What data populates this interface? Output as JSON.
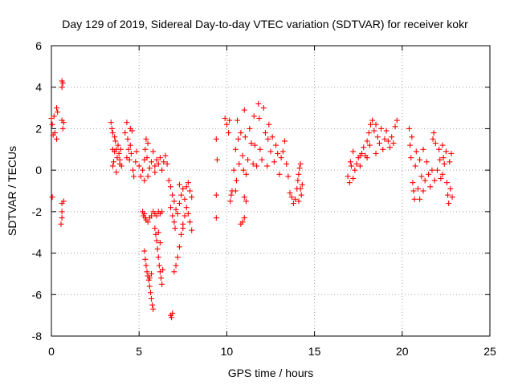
{
  "chart_data": {
    "type": "scatter",
    "title": "Day 129 of 2019, Sidereal Day-to-day VTEC variation (SDTVAR) for receiver kokr",
    "xlabel": "GPS time / hours",
    "ylabel": "SDTVAR / TECUs",
    "xlim": [
      0,
      25
    ],
    "ylim": [
      -8,
      6
    ],
    "xticks": [
      0,
      5,
      10,
      15,
      20,
      25
    ],
    "yticks": [
      -8,
      -6,
      -4,
      -2,
      0,
      2,
      4,
      6
    ],
    "grid": true,
    "marker": "+",
    "color": "#ff0000",
    "series": [
      {
        "name": "SDTVAR",
        "points": [
          [
            0.0,
            2.5
          ],
          [
            0.05,
            2.2
          ],
          [
            0.1,
            1.7
          ],
          [
            0.15,
            2.6
          ],
          [
            0.2,
            1.8
          ],
          [
            0.05,
            -1.3
          ],
          [
            0.3,
            3.0
          ],
          [
            0.35,
            2.8
          ],
          [
            0.3,
            1.5
          ],
          [
            0.6,
            4.3
          ],
          [
            0.6,
            4.0
          ],
          [
            0.65,
            4.2
          ],
          [
            0.7,
            2.3
          ],
          [
            0.6,
            2.4
          ],
          [
            0.65,
            2.0
          ],
          [
            0.6,
            -1.6
          ],
          [
            0.6,
            -2.0
          ],
          [
            0.55,
            -2.6
          ],
          [
            0.7,
            -1.5
          ],
          [
            0.6,
            -2.3
          ],
          [
            3.4,
            2.3
          ],
          [
            3.45,
            2.0
          ],
          [
            3.5,
            1.8
          ],
          [
            3.5,
            1.0
          ],
          [
            3.55,
            0.4
          ],
          [
            3.6,
            0.9
          ],
          [
            3.65,
            1.4
          ],
          [
            3.7,
            1.0
          ],
          [
            3.75,
            0.6
          ],
          [
            3.8,
            1.2
          ],
          [
            3.85,
            0.8
          ],
          [
            3.9,
            0.3
          ],
          [
            3.95,
            1.0
          ],
          [
            4.0,
            0.2
          ],
          [
            3.5,
            0.2
          ],
          [
            3.7,
            -0.1
          ],
          [
            3.9,
            0.5
          ],
          [
            3.6,
            1.6
          ],
          [
            4.2,
            1.8
          ],
          [
            4.3,
            2.3
          ],
          [
            4.35,
            1.5
          ],
          [
            4.4,
            1.0
          ],
          [
            4.45,
            0.5
          ],
          [
            4.5,
            1.2
          ],
          [
            4.55,
            0.8
          ],
          [
            4.6,
            1.9
          ],
          [
            4.65,
            0.0
          ],
          [
            4.7,
            -0.3
          ],
          [
            4.8,
            0.4
          ],
          [
            4.85,
            0.9
          ],
          [
            4.3,
            0.6
          ],
          [
            4.5,
            2.0
          ],
          [
            5.0,
            0.2
          ],
          [
            5.1,
            -0.3
          ],
          [
            5.2,
            0.0
          ],
          [
            5.3,
            0.5
          ],
          [
            5.35,
            1.0
          ],
          [
            5.4,
            1.5
          ],
          [
            5.5,
            1.3
          ],
          [
            5.45,
            0.6
          ],
          [
            5.6,
            0.1
          ],
          [
            5.7,
            0.4
          ],
          [
            5.8,
            0.9
          ],
          [
            5.9,
            0.2
          ],
          [
            6.0,
            0.5
          ],
          [
            6.1,
            0.3
          ],
          [
            6.2,
            0.6
          ],
          [
            6.3,
            0.0
          ],
          [
            6.4,
            0.4
          ],
          [
            6.5,
            0.7
          ],
          [
            6.6,
            0.3
          ],
          [
            5.3,
            -0.5
          ],
          [
            5.5,
            -0.3
          ],
          [
            5.9,
            -0.1
          ],
          [
            5.2,
            -2.0
          ],
          [
            5.25,
            -2.2
          ],
          [
            5.3,
            -2.1
          ],
          [
            5.35,
            -2.3
          ],
          [
            5.4,
            -2.4
          ],
          [
            5.5,
            -2.5
          ],
          [
            5.6,
            -2.3
          ],
          [
            5.7,
            -2.2
          ],
          [
            5.8,
            -2.0
          ],
          [
            5.9,
            -2.1
          ],
          [
            6.0,
            -2.2
          ],
          [
            6.1,
            -2.0
          ],
          [
            6.2,
            -2.1
          ],
          [
            6.3,
            -2.0
          ],
          [
            5.3,
            -3.9
          ],
          [
            5.35,
            -4.3
          ],
          [
            5.4,
            -4.6
          ],
          [
            5.45,
            -4.9
          ],
          [
            5.5,
            -5.1
          ],
          [
            5.55,
            -5.3
          ],
          [
            5.6,
            -5.6
          ],
          [
            5.65,
            -5.9
          ],
          [
            5.7,
            -6.2
          ],
          [
            5.75,
            -6.5
          ],
          [
            5.8,
            -6.7
          ],
          [
            5.6,
            -5.2
          ],
          [
            5.7,
            -5.0
          ],
          [
            5.9,
            -2.8
          ],
          [
            5.95,
            -3.1
          ],
          [
            6.0,
            -3.4
          ],
          [
            6.05,
            -3.8
          ],
          [
            6.1,
            -4.2
          ],
          [
            6.15,
            -4.6
          ],
          [
            6.2,
            -4.9
          ],
          [
            6.25,
            -5.2
          ],
          [
            6.3,
            -5.5
          ],
          [
            6.35,
            -4.8
          ],
          [
            6.1,
            -3.0
          ],
          [
            6.2,
            -3.5
          ],
          [
            6.8,
            -7.0
          ],
          [
            6.85,
            -7.1
          ],
          [
            6.9,
            -6.9
          ],
          [
            6.8,
            -1.8
          ],
          [
            6.9,
            -2.2
          ],
          [
            7.0,
            -2.5
          ],
          [
            7.05,
            -2.8
          ],
          [
            7.0,
            -4.9
          ],
          [
            7.1,
            -4.6
          ],
          [
            7.2,
            -4.2
          ],
          [
            7.3,
            -3.7
          ],
          [
            7.4,
            -3.1
          ],
          [
            7.5,
            -2.6
          ],
          [
            7.6,
            -2.2
          ],
          [
            6.7,
            -0.5
          ],
          [
            6.8,
            -0.8
          ],
          [
            6.9,
            -1.2
          ],
          [
            7.0,
            -1.5
          ],
          [
            7.1,
            -1.9
          ],
          [
            7.2,
            -2.1
          ],
          [
            7.3,
            -1.6
          ],
          [
            7.4,
            -1.2
          ],
          [
            7.5,
            -0.9
          ],
          [
            7.6,
            -1.4
          ],
          [
            7.7,
            -1.8
          ],
          [
            7.8,
            -2.1
          ],
          [
            7.9,
            -2.5
          ],
          [
            8.0,
            -2.9
          ],
          [
            7.7,
            -0.8
          ],
          [
            7.8,
            -0.6
          ],
          [
            7.9,
            -1.0
          ],
          [
            8.0,
            -1.3
          ],
          [
            7.3,
            -0.7
          ],
          [
            7.5,
            -2.8
          ],
          [
            9.4,
            1.5
          ],
          [
            9.45,
            0.5
          ],
          [
            9.4,
            -1.2
          ],
          [
            9.4,
            -2.3
          ],
          [
            9.9,
            2.5
          ],
          [
            10.0,
            2.2
          ],
          [
            10.1,
            1.8
          ],
          [
            10.15,
            2.4
          ],
          [
            10.2,
            -1.5
          ],
          [
            10.25,
            -1.2
          ],
          [
            10.3,
            -1.0
          ],
          [
            10.4,
            0.0
          ],
          [
            10.5,
            1.0
          ],
          [
            10.55,
            -0.5
          ],
          [
            10.6,
            2.4
          ],
          [
            10.65,
            1.5
          ],
          [
            10.7,
            0.3
          ],
          [
            10.8,
            1.8
          ],
          [
            10.9,
            0.7
          ],
          [
            10.95,
            0.0
          ],
          [
            11.0,
            2.9
          ],
          [
            11.05,
            1.6
          ],
          [
            11.1,
            -0.2
          ],
          [
            11.2,
            0.5
          ],
          [
            11.3,
            2.0
          ],
          [
            11.4,
            1.3
          ],
          [
            11.5,
            0.3
          ],
          [
            11.55,
            2.6
          ],
          [
            11.6,
            1.2
          ],
          [
            11.7,
            0.2
          ],
          [
            11.8,
            3.2
          ],
          [
            11.85,
            2.5
          ],
          [
            11.9,
            1.0
          ],
          [
            12.0,
            0.5
          ],
          [
            12.1,
            3.0
          ],
          [
            12.2,
            1.8
          ],
          [
            12.3,
            0.2
          ],
          [
            12.35,
            1.5
          ],
          [
            12.4,
            2.2
          ],
          [
            12.5,
            0.9
          ],
          [
            12.6,
            1.6
          ],
          [
            12.7,
            0.4
          ],
          [
            12.8,
            1.2
          ],
          [
            12.9,
            0.8
          ],
          [
            13.0,
            -0.2
          ],
          [
            13.1,
            0.6
          ],
          [
            13.2,
            0.9
          ],
          [
            13.3,
            1.4
          ],
          [
            13.4,
            0.3
          ],
          [
            13.5,
            -0.3
          ],
          [
            10.8,
            -2.6
          ],
          [
            10.9,
            -2.5
          ],
          [
            11.0,
            -2.3
          ],
          [
            11.1,
            -1.5
          ],
          [
            11.0,
            -1.3
          ],
          [
            10.5,
            -1.0
          ],
          [
            13.6,
            -1.1
          ],
          [
            13.7,
            -1.3
          ],
          [
            13.8,
            -1.6
          ],
          [
            13.9,
            -1.4
          ],
          [
            14.0,
            -0.9
          ],
          [
            14.05,
            -0.5
          ],
          [
            14.1,
            -0.2
          ],
          [
            14.15,
            0.1
          ],
          [
            14.2,
            0.3
          ],
          [
            14.3,
            -0.7
          ],
          [
            14.25,
            -1.2
          ],
          [
            14.1,
            -1.5
          ],
          [
            14.2,
            -0.9
          ],
          [
            16.9,
            -0.3
          ],
          [
            17.0,
            -0.6
          ],
          [
            17.05,
            0.4
          ],
          [
            17.1,
            0.2
          ],
          [
            17.2,
            -0.4
          ],
          [
            17.3,
            0.0
          ],
          [
            17.4,
            0.3
          ],
          [
            17.5,
            0.6
          ],
          [
            17.6,
            0.2
          ],
          [
            17.7,
            0.8
          ],
          [
            17.8,
            1.1
          ],
          [
            17.9,
            0.7
          ],
          [
            18.0,
            1.4
          ],
          [
            18.1,
            1.8
          ],
          [
            18.15,
            1.2
          ],
          [
            18.2,
            2.2
          ],
          [
            18.3,
            2.4
          ],
          [
            18.4,
            1.9
          ],
          [
            18.5,
            2.2
          ],
          [
            18.6,
            1.6
          ],
          [
            18.7,
            1.3
          ],
          [
            18.8,
            2.0
          ],
          [
            18.9,
            1.0
          ],
          [
            19.0,
            1.5
          ],
          [
            19.1,
            1.9
          ],
          [
            19.2,
            1.4
          ],
          [
            19.3,
            1.1
          ],
          [
            19.4,
            1.6
          ],
          [
            19.5,
            1.3
          ],
          [
            19.6,
            2.1
          ],
          [
            19.7,
            2.4
          ],
          [
            17.2,
            0.9
          ],
          [
            17.6,
            0.7
          ],
          [
            18.0,
            0.6
          ],
          [
            18.5,
            0.8
          ],
          [
            20.4,
            2.0
          ],
          [
            20.45,
            1.2
          ],
          [
            20.5,
            0.6
          ],
          [
            20.55,
            1.6
          ],
          [
            20.6,
            -0.6
          ],
          [
            20.65,
            -1.0
          ],
          [
            20.7,
            -1.4
          ],
          [
            20.75,
            0.2
          ],
          [
            20.8,
            0.9
          ],
          [
            20.9,
            -0.9
          ],
          [
            21.0,
            -1.4
          ],
          [
            21.1,
            -0.3
          ],
          [
            21.2,
            -1.0
          ],
          [
            21.3,
            -0.5
          ],
          [
            21.4,
            0.4
          ],
          [
            21.5,
            -0.2
          ],
          [
            21.6,
            -0.8
          ],
          [
            21.7,
            0.0
          ],
          [
            21.75,
            1.5
          ],
          [
            21.8,
            1.8
          ],
          [
            21.85,
            -0.5
          ],
          [
            21.9,
            1.3
          ],
          [
            22.0,
            0.0
          ],
          [
            22.1,
            1.0
          ],
          [
            22.15,
            0.5
          ],
          [
            22.2,
            -0.4
          ],
          [
            22.3,
            1.2
          ],
          [
            22.35,
            0.6
          ],
          [
            22.4,
            0.3
          ],
          [
            22.5,
            0.9
          ],
          [
            22.55,
            -0.6
          ],
          [
            22.6,
            -1.2
          ],
          [
            22.65,
            -1.6
          ],
          [
            22.7,
            0.4
          ],
          [
            22.75,
            -0.9
          ],
          [
            22.8,
            0.8
          ],
          [
            22.85,
            -1.3
          ],
          [
            21.2,
            1.0
          ],
          [
            21.0,
            0.5
          ],
          [
            22.3,
            -0.2
          ]
        ]
      }
    ]
  }
}
